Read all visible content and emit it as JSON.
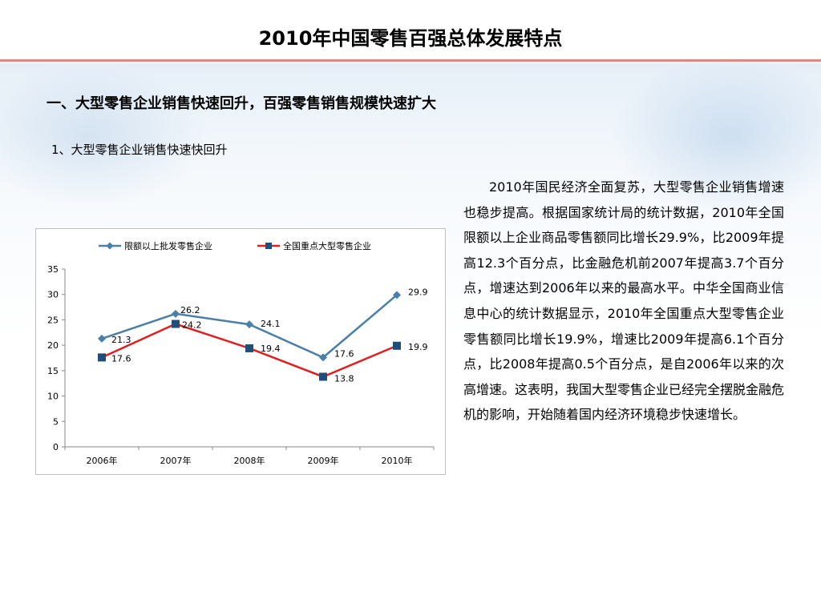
{
  "page": {
    "title": "2010年中国零售百强总体发展特点",
    "heading1": "一、大型零售企业销售快速回升，百强零售销售规模快速扩大",
    "heading2": "1、大型零售企业销售快速快回升",
    "paragraph": "2010年国民经济全面复苏，大型零售企业销售增速也稳步提高。根据国家统计局的统计数据，2010年全国限额以上企业商品零售额同比增长29.9%，比2009年提高12.3个百分点，比金融危机前2007年提高3.7个百分点，增速达到2006年以来的最高水平。中华全国商业信息中心的统计数据显示，2010年全国重点大型零售企业零售额同比增长19.9%，增速比2009年提高6.1个百分点，比2008年提高0.5个百分点，是自2006年以来的次高增速。这表明，我国大型零售企业已经完全摆脱金融危机的影响，开始随着国内经济环境稳步快速增长。"
  },
  "chart_data": {
    "type": "line",
    "categories": [
      "2006年",
      "2007年",
      "2008年",
      "2009年",
      "2010年"
    ],
    "ylim": [
      0,
      35
    ],
    "yticks": [
      0,
      5,
      10,
      15,
      20,
      25,
      30,
      35
    ],
    "legend_position": "top",
    "grid": false,
    "series": [
      {
        "name": "限额以上批发零售企业",
        "color": "#4a7fa8",
        "marker": "diamond",
        "values": [
          21.3,
          26.2,
          24.1,
          17.6,
          29.9
        ]
      },
      {
        "name": "全国重点大型零售企业",
        "color": "#e02020",
        "marker": "square",
        "values": [
          17.6,
          24.2,
          19.4,
          13.8,
          19.9
        ]
      }
    ]
  }
}
